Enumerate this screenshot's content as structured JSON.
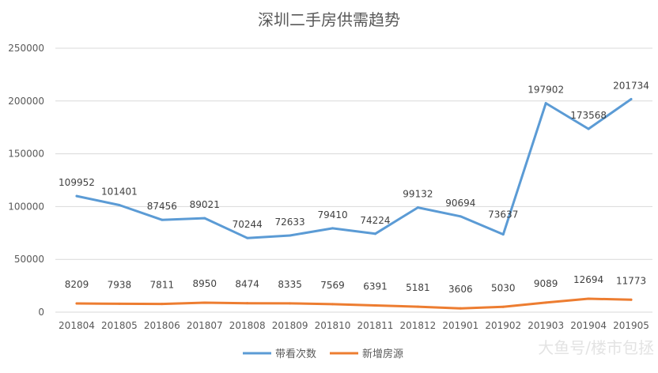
{
  "chart_data": {
    "type": "line",
    "title": "深圳二手房供需趋势",
    "xlabel": "",
    "ylabel": "",
    "categories": [
      "201804",
      "201805",
      "201806",
      "201807",
      "201808",
      "201809",
      "201810",
      "201811",
      "201812",
      "201901",
      "201902",
      "201903",
      "201904",
      "201905"
    ],
    "ylim": [
      0,
      250000
    ],
    "yticks": [
      0,
      50000,
      100000,
      150000,
      200000,
      250000
    ],
    "grid": true,
    "legend_position": "bottom",
    "series": [
      {
        "name": "带看次数",
        "color": "#5b9bd5",
        "values": [
          109952,
          101401,
          87456,
          89021,
          70244,
          72633,
          79410,
          74224,
          99132,
          90694,
          73637,
          197902,
          173568,
          201734
        ]
      },
      {
        "name": "新增房源",
        "color": "#ed7d31",
        "values": [
          8209,
          7938,
          7811,
          8950,
          8474,
          8335,
          7569,
          6391,
          5181,
          3606,
          5030,
          9089,
          12694,
          11773
        ]
      }
    ]
  },
  "watermark": "大鱼号/楼市包拯"
}
